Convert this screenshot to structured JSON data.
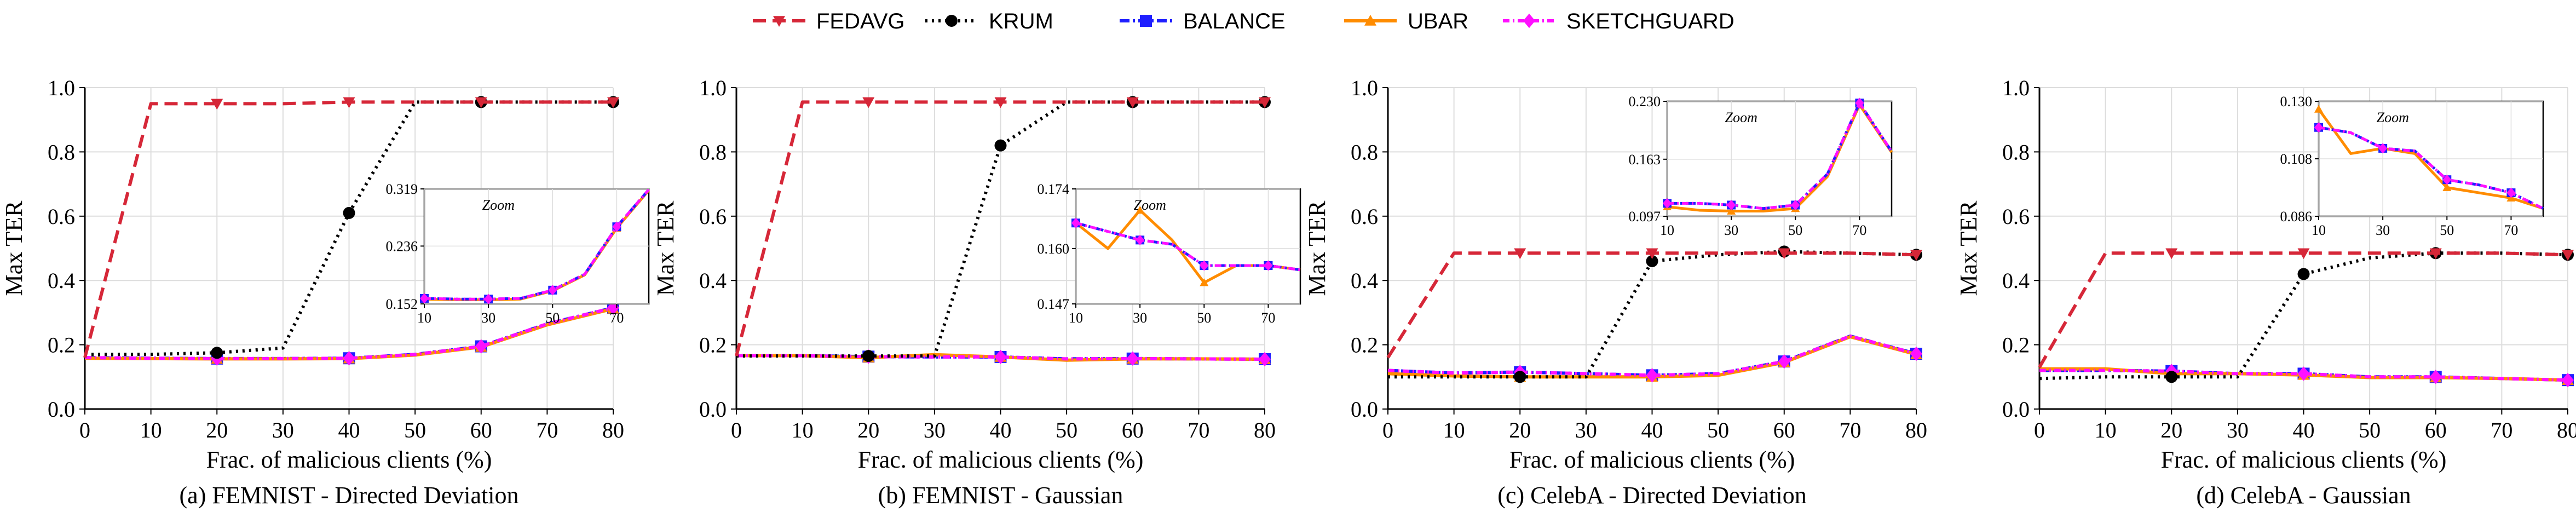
{
  "legend": [
    {
      "name": "FEDAVG",
      "color": "#d62738",
      "dash": "24 12",
      "marker": "tri-down"
    },
    {
      "name": "KRUM",
      "color": "#000000",
      "dash": "4 8",
      "marker": "circle"
    },
    {
      "name": "BALANCE",
      "color": "#1f1fff",
      "dash": "18 6 4 6",
      "marker": "square"
    },
    {
      "name": "UBAR",
      "color": "#ff8c00",
      "dash": "",
      "marker": "tri-up"
    },
    {
      "name": "SKETCHGUARD",
      "color": "#ff10ff",
      "dash": "12 6 3 6",
      "marker": "diamond"
    }
  ],
  "chart_data": [
    {
      "type": "line",
      "caption": "(a) FEMNIST - Directed Deviation",
      "xlabel": "Frac. of malicious clients (%)",
      "ylabel": "Max TER",
      "xlim": [
        0,
        80
      ],
      "ylim": [
        0,
        1.0
      ],
      "xticks": [
        0,
        10,
        20,
        30,
        40,
        50,
        60,
        70,
        80
      ],
      "yticks": [
        0.0,
        0.2,
        0.4,
        0.6,
        0.8,
        1.0
      ],
      "x": [
        0,
        10,
        20,
        30,
        40,
        50,
        60,
        70,
        80
      ],
      "series": [
        {
          "name": "FEDAVG",
          "values": [
            0.16,
            0.95,
            0.95,
            0.95,
            0.955,
            0.955,
            0.955,
            0.955,
            0.955
          ]
        },
        {
          "name": "KRUM",
          "values": [
            0.17,
            0.17,
            0.175,
            0.19,
            0.61,
            0.955,
            0.955,
            0.955,
            0.955
          ]
        },
        {
          "name": "BALANCE",
          "values": [
            0.16,
            0.158,
            0.157,
            0.157,
            0.158,
            0.17,
            0.195,
            0.265,
            0.315
          ]
        },
        {
          "name": "UBAR",
          "values": [
            0.158,
            0.157,
            0.156,
            0.156,
            0.157,
            0.168,
            0.193,
            0.262,
            0.312
          ]
        },
        {
          "name": "SKETCHGUARD",
          "values": [
            0.16,
            0.158,
            0.157,
            0.157,
            0.158,
            0.17,
            0.195,
            0.265,
            0.315
          ]
        }
      ],
      "zoom": {
        "label": "Zoom",
        "xlim": [
          10,
          80
        ],
        "ylim": [
          0.152,
          0.319
        ],
        "xticks": [
          10,
          30,
          50,
          70
        ],
        "xtick_labels": [
          "10",
          "30",
          "50",
          "70"
        ],
        "yticks": [
          0.152,
          0.236,
          0.319
        ],
        "ytick_labels": [
          "0.152",
          "0.236",
          "0.319"
        ],
        "hide_xtick_labels": [],
        "x": [
          10,
          20,
          30,
          40,
          50,
          60,
          70,
          80
        ],
        "series": [
          {
            "name": "UBAR",
            "values": [
              0.159,
              0.158,
              0.158,
              0.159,
              0.171,
              0.194,
              0.262,
              0.317
            ]
          },
          {
            "name": "BALANCE",
            "values": [
              0.16,
              0.159,
              0.159,
              0.16,
              0.172,
              0.195,
              0.264,
              0.318
            ]
          },
          {
            "name": "SKETCHGUARD",
            "values": [
              0.16,
              0.159,
              0.159,
              0.16,
              0.172,
              0.195,
              0.264,
              0.318
            ]
          }
        ]
      }
    },
    {
      "type": "line",
      "caption": "(b) FEMNIST - Gaussian",
      "xlabel": "Frac. of malicious clients (%)",
      "ylabel": "Max TER",
      "xlim": [
        0,
        80
      ],
      "ylim": [
        0,
        1.0
      ],
      "xticks": [
        0,
        10,
        20,
        30,
        40,
        50,
        60,
        70,
        80
      ],
      "yticks": [
        0.0,
        0.2,
        0.4,
        0.6,
        0.8,
        1.0
      ],
      "x": [
        0,
        10,
        20,
        30,
        40,
        50,
        60,
        70,
        80
      ],
      "series": [
        {
          "name": "FEDAVG",
          "values": [
            0.165,
            0.955,
            0.955,
            0.955,
            0.955,
            0.955,
            0.955,
            0.955,
            0.955
          ]
        },
        {
          "name": "KRUM",
          "values": [
            0.165,
            0.165,
            0.165,
            0.165,
            0.82,
            0.955,
            0.955,
            0.955,
            0.955
          ]
        },
        {
          "name": "BALANCE",
          "values": [
            0.166,
            0.166,
            0.163,
            0.162,
            0.162,
            0.156,
            0.157,
            0.156,
            0.155
          ]
        },
        {
          "name": "UBAR",
          "values": [
            0.166,
            0.166,
            0.16,
            0.169,
            0.162,
            0.152,
            0.156,
            0.156,
            0.155
          ]
        },
        {
          "name": "SKETCHGUARD",
          "values": [
            0.166,
            0.166,
            0.163,
            0.162,
            0.162,
            0.156,
            0.157,
            0.156,
            0.155
          ]
        }
      ],
      "zoom": {
        "label": "Zoom",
        "xlim": [
          10,
          80
        ],
        "ylim": [
          0.147,
          0.174
        ],
        "xticks": [
          10,
          30,
          50,
          70
        ],
        "xtick_labels": [
          "10",
          "30",
          "50",
          "70"
        ],
        "yticks": [
          0.147,
          0.16,
          0.174
        ],
        "ytick_labels": [
          "0.147",
          "0.160",
          "0.174"
        ],
        "hide_xtick_labels": [],
        "x": [
          10,
          20,
          30,
          40,
          50,
          60,
          70,
          80
        ],
        "series": [
          {
            "name": "UBAR",
            "values": [
              0.166,
              0.16,
              0.169,
              0.162,
              0.152,
              0.156,
              0.156,
              0.155
            ]
          },
          {
            "name": "BALANCE",
            "values": [
              0.166,
              0.164,
              0.162,
              0.161,
              0.156,
              0.156,
              0.156,
              0.155
            ]
          },
          {
            "name": "SKETCHGUARD",
            "values": [
              0.166,
              0.164,
              0.162,
              0.161,
              0.156,
              0.156,
              0.156,
              0.155
            ]
          }
        ]
      }
    },
    {
      "type": "line",
      "caption": "(c) CelebA - Directed Deviation",
      "xlabel": "Frac. of malicious clients (%)",
      "ylabel": "Max TER",
      "xlim": [
        0,
        80
      ],
      "ylim": [
        0,
        1.0
      ],
      "xticks": [
        0,
        10,
        20,
        30,
        40,
        50,
        60,
        70,
        80
      ],
      "yticks": [
        0.0,
        0.2,
        0.4,
        0.6,
        0.8,
        1.0
      ],
      "x": [
        0,
        10,
        20,
        30,
        40,
        50,
        60,
        70,
        80
      ],
      "series": [
        {
          "name": "FEDAVG",
          "values": [
            0.16,
            0.485,
            0.485,
            0.485,
            0.485,
            0.485,
            0.485,
            0.485,
            0.48
          ]
        },
        {
          "name": "KRUM",
          "values": [
            0.1,
            0.1,
            0.1,
            0.1,
            0.46,
            0.48,
            0.49,
            0.485,
            0.48
          ]
        },
        {
          "name": "BALANCE",
          "values": [
            0.12,
            0.112,
            0.115,
            0.11,
            0.105,
            0.11,
            0.148,
            0.227,
            0.172
          ]
        },
        {
          "name": "UBAR",
          "values": [
            0.11,
            0.103,
            0.1,
            0.1,
            0.1,
            0.105,
            0.145,
            0.225,
            0.17
          ]
        },
        {
          "name": "SKETCHGUARD",
          "values": [
            0.12,
            0.112,
            0.115,
            0.11,
            0.105,
            0.11,
            0.148,
            0.227,
            0.172
          ]
        }
      ],
      "zoom": {
        "label": "Zoom",
        "xlim": [
          10,
          80
        ],
        "ylim": [
          0.097,
          0.23
        ],
        "xticks": [
          10,
          30,
          50,
          70
        ],
        "xtick_labels": [
          "10",
          "30",
          "50",
          "70"
        ],
        "yticks": [
          0.097,
          0.163,
          0.23
        ],
        "ytick_labels": [
          "0.097",
          "0.163",
          "0.230"
        ],
        "hide_xtick_labels": [],
        "x": [
          10,
          20,
          30,
          40,
          50,
          60,
          70,
          80
        ],
        "series": [
          {
            "name": "UBAR",
            "values": [
              0.108,
              0.104,
              0.103,
              0.103,
              0.106,
              0.143,
              0.226,
              0.171
            ]
          },
          {
            "name": "BALANCE",
            "values": [
              0.112,
              0.112,
              0.11,
              0.106,
              0.11,
              0.146,
              0.228,
              0.172
            ]
          },
          {
            "name": "SKETCHGUARD",
            "values": [
              0.112,
              0.112,
              0.11,
              0.106,
              0.11,
              0.146,
              0.228,
              0.172
            ]
          }
        ]
      }
    },
    {
      "type": "line",
      "caption": "(d) CelebA - Gaussian",
      "xlabel": "Frac. of malicious clients (%)",
      "ylabel": "Max TER",
      "xlim": [
        0,
        80
      ],
      "ylim": [
        0,
        1.0
      ],
      "xticks": [
        0,
        10,
        20,
        30,
        40,
        50,
        60,
        70,
        80
      ],
      "yticks": [
        0.0,
        0.2,
        0.4,
        0.6,
        0.8,
        1.0
      ],
      "x": [
        0,
        10,
        20,
        30,
        40,
        50,
        60,
        70,
        80
      ],
      "series": [
        {
          "name": "FEDAVG",
          "values": [
            0.13,
            0.485,
            0.485,
            0.485,
            0.485,
            0.485,
            0.485,
            0.485,
            0.48
          ]
        },
        {
          "name": "KRUM",
          "values": [
            0.095,
            0.1,
            0.1,
            0.1,
            0.42,
            0.47,
            0.485,
            0.485,
            0.48
          ]
        },
        {
          "name": "BALANCE",
          "values": [
            0.12,
            0.12,
            0.118,
            0.11,
            0.11,
            0.1,
            0.1,
            0.095,
            0.09
          ]
        },
        {
          "name": "UBAR",
          "values": [
            0.125,
            0.125,
            0.11,
            0.11,
            0.106,
            0.098,
            0.098,
            0.095,
            0.09
          ]
        },
        {
          "name": "SKETCHGUARD",
          "values": [
            0.12,
            0.12,
            0.118,
            0.11,
            0.11,
            0.1,
            0.1,
            0.095,
            0.09
          ]
        }
      ],
      "zoom": {
        "label": "Zoom",
        "xlim": [
          10,
          80
        ],
        "ylim": [
          0.086,
          0.13
        ],
        "xticks": [
          10,
          30,
          50,
          70
        ],
        "xtick_labels": [
          "10",
          "30",
          "50",
          "70"
        ],
        "yticks": [
          0.086,
          0.108,
          0.13
        ],
        "ytick_labels": [
          "0.086",
          "0.108",
          "0.130"
        ],
        "hide_xtick_labels": [],
        "x": [
          10,
          20,
          30,
          40,
          50,
          60,
          70,
          80
        ],
        "series": [
          {
            "name": "UBAR",
            "values": [
              0.127,
              0.11,
              0.112,
              0.11,
              0.097,
              0.095,
              0.093,
              0.089
            ]
          },
          {
            "name": "BALANCE",
            "values": [
              0.12,
              0.118,
              0.112,
              0.111,
              0.1,
              0.098,
              0.095,
              0.089
            ]
          },
          {
            "name": "SKETCHGUARD",
            "values": [
              0.12,
              0.118,
              0.112,
              0.111,
              0.1,
              0.098,
              0.095,
              0.089
            ]
          }
        ]
      }
    }
  ]
}
